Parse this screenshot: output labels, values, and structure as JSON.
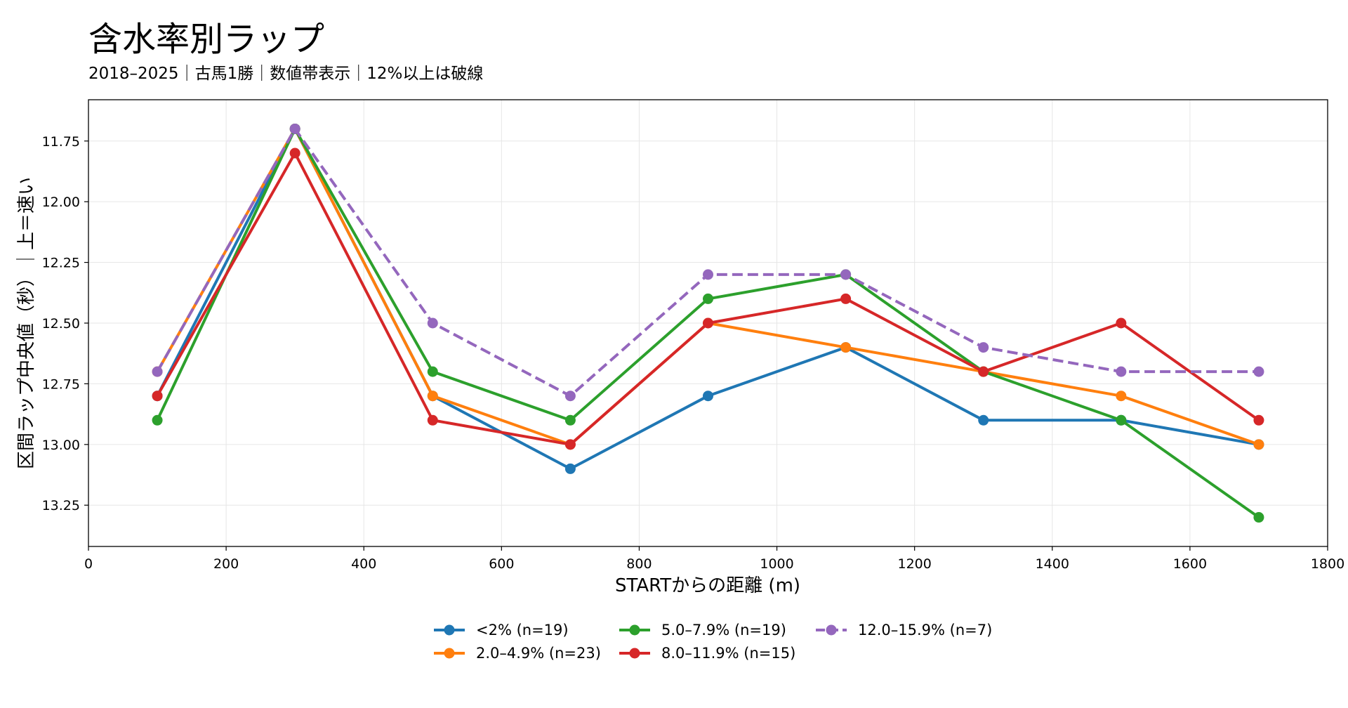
{
  "chart_data": {
    "type": "line",
    "title": "含水率別ラップ",
    "subtitle": "2018–2025｜古馬1勝｜数値帯表示｜12%以上は破線",
    "xlabel": "STARTからの距離 (m)",
    "ylabel": "区間ラップ中央値（秒）｜上＝速い",
    "xlim": [
      0,
      1800
    ],
    "ylim": [
      13.42,
      11.58
    ],
    "y_inverted": true,
    "xticks": [
      0,
      200,
      400,
      600,
      800,
      1000,
      1200,
      1400,
      1600,
      1800
    ],
    "yticks": [
      11.75,
      12.0,
      12.25,
      12.5,
      12.75,
      13.0,
      13.25
    ],
    "grid": true,
    "legend_position": "bottom-center",
    "x": [
      100,
      300,
      500,
      700,
      900,
      1100,
      1300,
      1500,
      1700
    ],
    "series": [
      {
        "name": "<2% (n=19)",
        "color": "#1f77b4",
        "dashed": false,
        "values": [
          12.8,
          11.7,
          12.8,
          13.1,
          12.8,
          12.6,
          12.9,
          12.9,
          13.0
        ]
      },
      {
        "name": "2.0–4.9% (n=23)",
        "color": "#ff7f0e",
        "dashed": false,
        "values": [
          12.7,
          11.7,
          12.8,
          13.0,
          12.5,
          12.6,
          12.7,
          12.8,
          13.0
        ]
      },
      {
        "name": "5.0–7.9% (n=19)",
        "color": "#2ca02c",
        "dashed": false,
        "values": [
          12.9,
          11.7,
          12.7,
          12.9,
          12.4,
          12.3,
          12.7,
          12.9,
          13.3
        ]
      },
      {
        "name": "8.0–11.9% (n=15)",
        "color": "#d62728",
        "dashed": false,
        "values": [
          12.8,
          11.8,
          12.9,
          13.0,
          12.5,
          12.4,
          12.7,
          12.5,
          12.9
        ]
      },
      {
        "name": "12.0–15.9% (n=7)",
        "color": "#9467bd",
        "dashed": true,
        "values": [
          12.7,
          11.7,
          12.5,
          12.8,
          12.3,
          12.3,
          12.6,
          12.7,
          12.7
        ]
      }
    ]
  }
}
